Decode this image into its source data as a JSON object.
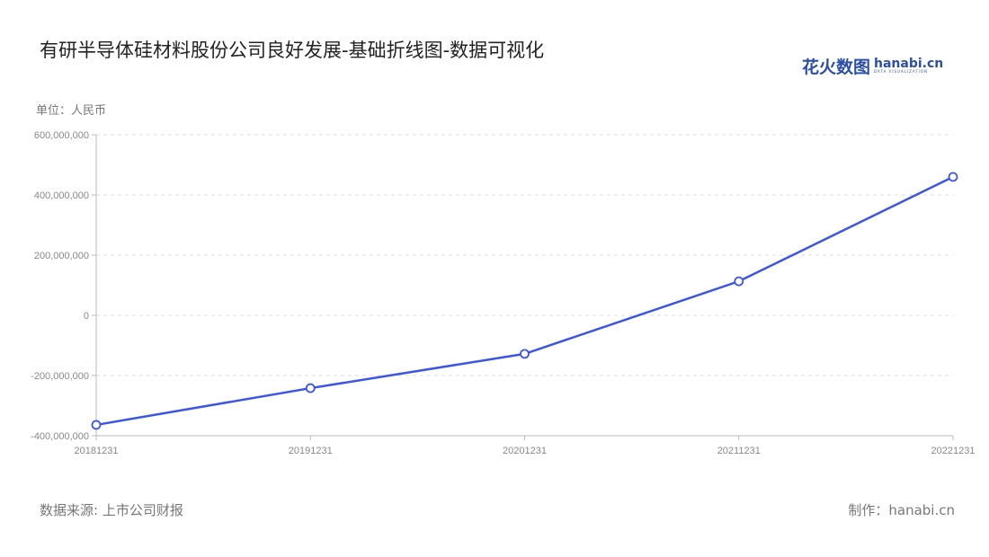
{
  "title": "有研半导体硅材料股份公司良好发展-基础折线图-数据可视化",
  "logo": {
    "cn": "花火数图",
    "en": "hanabi.cn",
    "sub": "DATA VISUALIZATION"
  },
  "source": "数据来源: 上市公司财报",
  "credit": "制作：hanabi.cn",
  "chart_data": {
    "type": "line",
    "ylabel": "单位：人民币",
    "categories": [
      "20181231",
      "20191231",
      "20201231",
      "20211231",
      "20221231"
    ],
    "values": [
      -364000000,
      -242000000,
      -128000000,
      113000000,
      460000000
    ],
    "ylim": [
      -400000000,
      600000000
    ],
    "yticks": [
      -400000000,
      -200000000,
      0,
      200000000,
      400000000,
      600000000
    ],
    "ytick_labels": [
      "-400,000,000",
      "-200,000,000",
      "0",
      "200,000,000",
      "400,000,000",
      "600,000,000"
    ],
    "grid": true,
    "line_color": "#3b55e6"
  }
}
